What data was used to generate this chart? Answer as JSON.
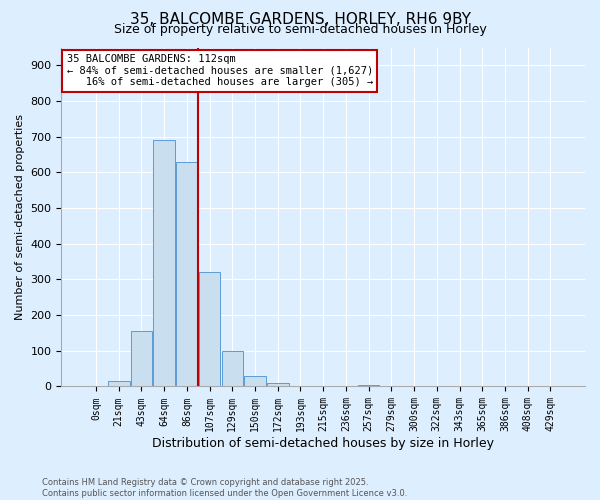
{
  "title_line1": "35, BALCOMBE GARDENS, HORLEY, RH6 9BY",
  "title_line2": "Size of property relative to semi-detached houses in Horley",
  "xlabel": "Distribution of semi-detached houses by size in Horley",
  "ylabel": "Number of semi-detached properties",
  "bar_labels": [
    "0sqm",
    "21sqm",
    "43sqm",
    "64sqm",
    "86sqm",
    "107sqm",
    "129sqm",
    "150sqm",
    "172sqm",
    "193sqm",
    "215sqm",
    "236sqm",
    "257sqm",
    "279sqm",
    "300sqm",
    "322sqm",
    "343sqm",
    "365sqm",
    "386sqm",
    "408sqm",
    "429sqm"
  ],
  "bar_values": [
    0,
    15,
    155,
    690,
    630,
    320,
    100,
    30,
    10,
    0,
    0,
    0,
    5,
    0,
    0,
    0,
    0,
    0,
    0,
    0,
    0
  ],
  "bar_color": "#c9dff0",
  "bar_edge_color": "#5b9bd5",
  "vline_color": "#c00000",
  "annotation_text": "35 BALCOMBE GARDENS: 112sqm\n← 84% of semi-detached houses are smaller (1,627)\n   16% of semi-detached houses are larger (305) →",
  "annotation_box_color": "#ffffff",
  "annotation_box_edge": "#c00000",
  "ylim": [
    0,
    950
  ],
  "yticks": [
    0,
    100,
    200,
    300,
    400,
    500,
    600,
    700,
    800,
    900
  ],
  "background_color": "#ddeeff",
  "footer_text": "Contains HM Land Registry data © Crown copyright and database right 2025.\nContains public sector information licensed under the Open Government Licence v3.0.",
  "title_fontsize": 11,
  "subtitle_fontsize": 9,
  "tick_fontsize": 7,
  "label_fontsize": 9,
  "annot_fontsize": 7.5
}
